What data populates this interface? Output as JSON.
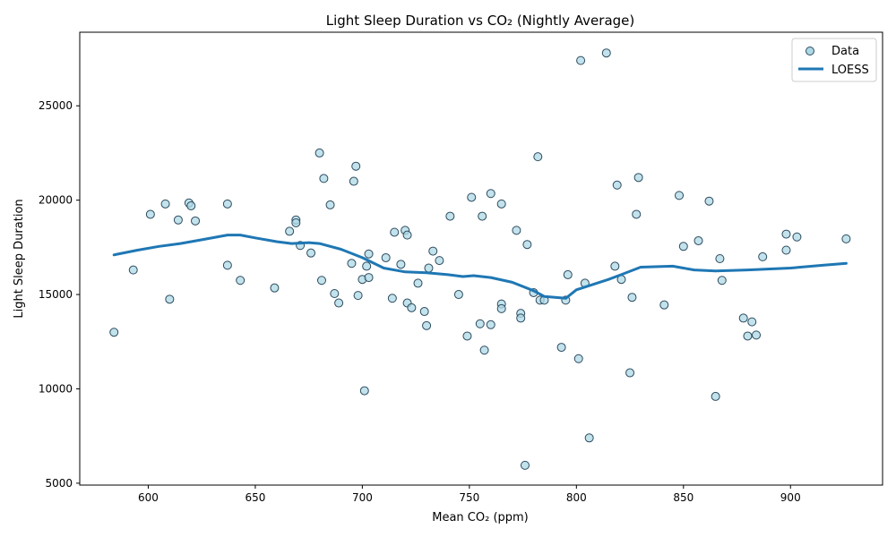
{
  "chart_data": {
    "type": "scatter",
    "title": "Light Sleep Duration vs CO₂ (Nightly Average)",
    "xlabel": "Mean CO₂ (ppm)",
    "ylabel": "Light Sleep Duration",
    "xlim": [
      568,
      943
    ],
    "ylim": [
      4900,
      28900
    ],
    "xticks": [
      600,
      650,
      700,
      750,
      800,
      850,
      900
    ],
    "yticks": [
      5000,
      10000,
      15000,
      20000,
      25000
    ],
    "grid": false,
    "legend": {
      "placement": "upper-right",
      "entries": [
        "Data",
        "LOESS"
      ]
    },
    "colors": {
      "point_fill": "#add8e6",
      "point_edge": "#2c4a5e",
      "line": "#1f77b4"
    },
    "series": [
      {
        "name": "Data",
        "kind": "scatter",
        "points": [
          [
            584,
            13000
          ],
          [
            593,
            16300
          ],
          [
            601,
            19250
          ],
          [
            608,
            19800
          ],
          [
            610,
            14750
          ],
          [
            614,
            18950
          ],
          [
            619,
            19850
          ],
          [
            620,
            19700
          ],
          [
            622,
            18900
          ],
          [
            637,
            19800
          ],
          [
            637,
            16550
          ],
          [
            643,
            15750
          ],
          [
            659,
            15350
          ],
          [
            666,
            18350
          ],
          [
            669,
            18950
          ],
          [
            669,
            18800
          ],
          [
            671,
            17600
          ],
          [
            676,
            17200
          ],
          [
            680,
            22500
          ],
          [
            681,
            15750
          ],
          [
            682,
            21150
          ],
          [
            685,
            19750
          ],
          [
            687,
            15050
          ],
          [
            689,
            14550
          ],
          [
            695,
            16650
          ],
          [
            696,
            21000
          ],
          [
            697,
            21800
          ],
          [
            698,
            14950
          ],
          [
            700,
            15800
          ],
          [
            701,
            9900
          ],
          [
            702,
            16500
          ],
          [
            703,
            17150
          ],
          [
            703,
            15900
          ],
          [
            711,
            16950
          ],
          [
            714,
            14800
          ],
          [
            715,
            18300
          ],
          [
            718,
            16600
          ],
          [
            720,
            18400
          ],
          [
            721,
            18150
          ],
          [
            721,
            14550
          ],
          [
            723,
            14300
          ],
          [
            726,
            15600
          ],
          [
            729,
            14100
          ],
          [
            730,
            13350
          ],
          [
            731,
            16400
          ],
          [
            733,
            17300
          ],
          [
            736,
            16800
          ],
          [
            741,
            19150
          ],
          [
            745,
            15000
          ],
          [
            749,
            12800
          ],
          [
            751,
            20150
          ],
          [
            755,
            13450
          ],
          [
            756,
            19150
          ],
          [
            757,
            12050
          ],
          [
            760,
            20350
          ],
          [
            760,
            13400
          ],
          [
            765,
            14500
          ],
          [
            765,
            14250
          ],
          [
            765,
            19800
          ],
          [
            772,
            18400
          ],
          [
            774,
            14000
          ],
          [
            774,
            13750
          ],
          [
            776,
            5950
          ],
          [
            777,
            17650
          ],
          [
            780,
            15100
          ],
          [
            782,
            22300
          ],
          [
            783,
            14700
          ],
          [
            785,
            14700
          ],
          [
            793,
            12200
          ],
          [
            795,
            14700
          ],
          [
            796,
            16050
          ],
          [
            801,
            11600
          ],
          [
            802,
            27400
          ],
          [
            804,
            15600
          ],
          [
            806,
            7400
          ],
          [
            814,
            27800
          ],
          [
            818,
            16500
          ],
          [
            819,
            20800
          ],
          [
            821,
            15800
          ],
          [
            825,
            10850
          ],
          [
            826,
            14850
          ],
          [
            828,
            19250
          ],
          [
            829,
            21200
          ],
          [
            841,
            14450
          ],
          [
            848,
            20250
          ],
          [
            850,
            17550
          ],
          [
            857,
            17850
          ],
          [
            862,
            19950
          ],
          [
            865,
            9600
          ],
          [
            867,
            16900
          ],
          [
            868,
            15750
          ],
          [
            878,
            13750
          ],
          [
            880,
            12800
          ],
          [
            882,
            13550
          ],
          [
            884,
            12850
          ],
          [
            887,
            17000
          ],
          [
            898,
            18200
          ],
          [
            898,
            17350
          ],
          [
            903,
            18050
          ],
          [
            926,
            17950
          ]
        ]
      },
      {
        "name": "LOESS",
        "kind": "line",
        "points": [
          [
            584,
            17100
          ],
          [
            595,
            17350
          ],
          [
            605,
            17550
          ],
          [
            615,
            17700
          ],
          [
            625,
            17900
          ],
          [
            637,
            18150
          ],
          [
            643,
            18150
          ],
          [
            650,
            18000
          ],
          [
            660,
            17800
          ],
          [
            667,
            17700
          ],
          [
            675,
            17750
          ],
          [
            680,
            17700
          ],
          [
            690,
            17400
          ],
          [
            700,
            16950
          ],
          [
            710,
            16400
          ],
          [
            720,
            16200
          ],
          [
            730,
            16150
          ],
          [
            740,
            16050
          ],
          [
            747,
            15950
          ],
          [
            752,
            16000
          ],
          [
            760,
            15900
          ],
          [
            770,
            15650
          ],
          [
            780,
            15200
          ],
          [
            785,
            14900
          ],
          [
            795,
            14800
          ],
          [
            800,
            15250
          ],
          [
            815,
            15800
          ],
          [
            822,
            16100
          ],
          [
            830,
            16450
          ],
          [
            845,
            16500
          ],
          [
            855,
            16300
          ],
          [
            865,
            16250
          ],
          [
            880,
            16300
          ],
          [
            900,
            16400
          ],
          [
            915,
            16550
          ],
          [
            926,
            16650
          ]
        ]
      }
    ]
  }
}
